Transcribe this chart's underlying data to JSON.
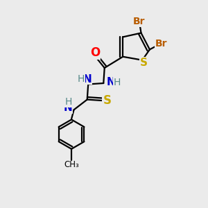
{
  "bg_color": "#ebebeb",
  "bond_color": "#000000",
  "bond_width": 1.6,
  "atom_colors": {
    "Br": "#b85c00",
    "S": "#c8a800",
    "O": "#ff0000",
    "N": "#0000cc",
    "H_color": "#558888",
    "C": "#000000"
  },
  "figsize": [
    3.0,
    3.0
  ],
  "dpi": 100,
  "xlim": [
    0,
    10
  ],
  "ylim": [
    0,
    10
  ]
}
